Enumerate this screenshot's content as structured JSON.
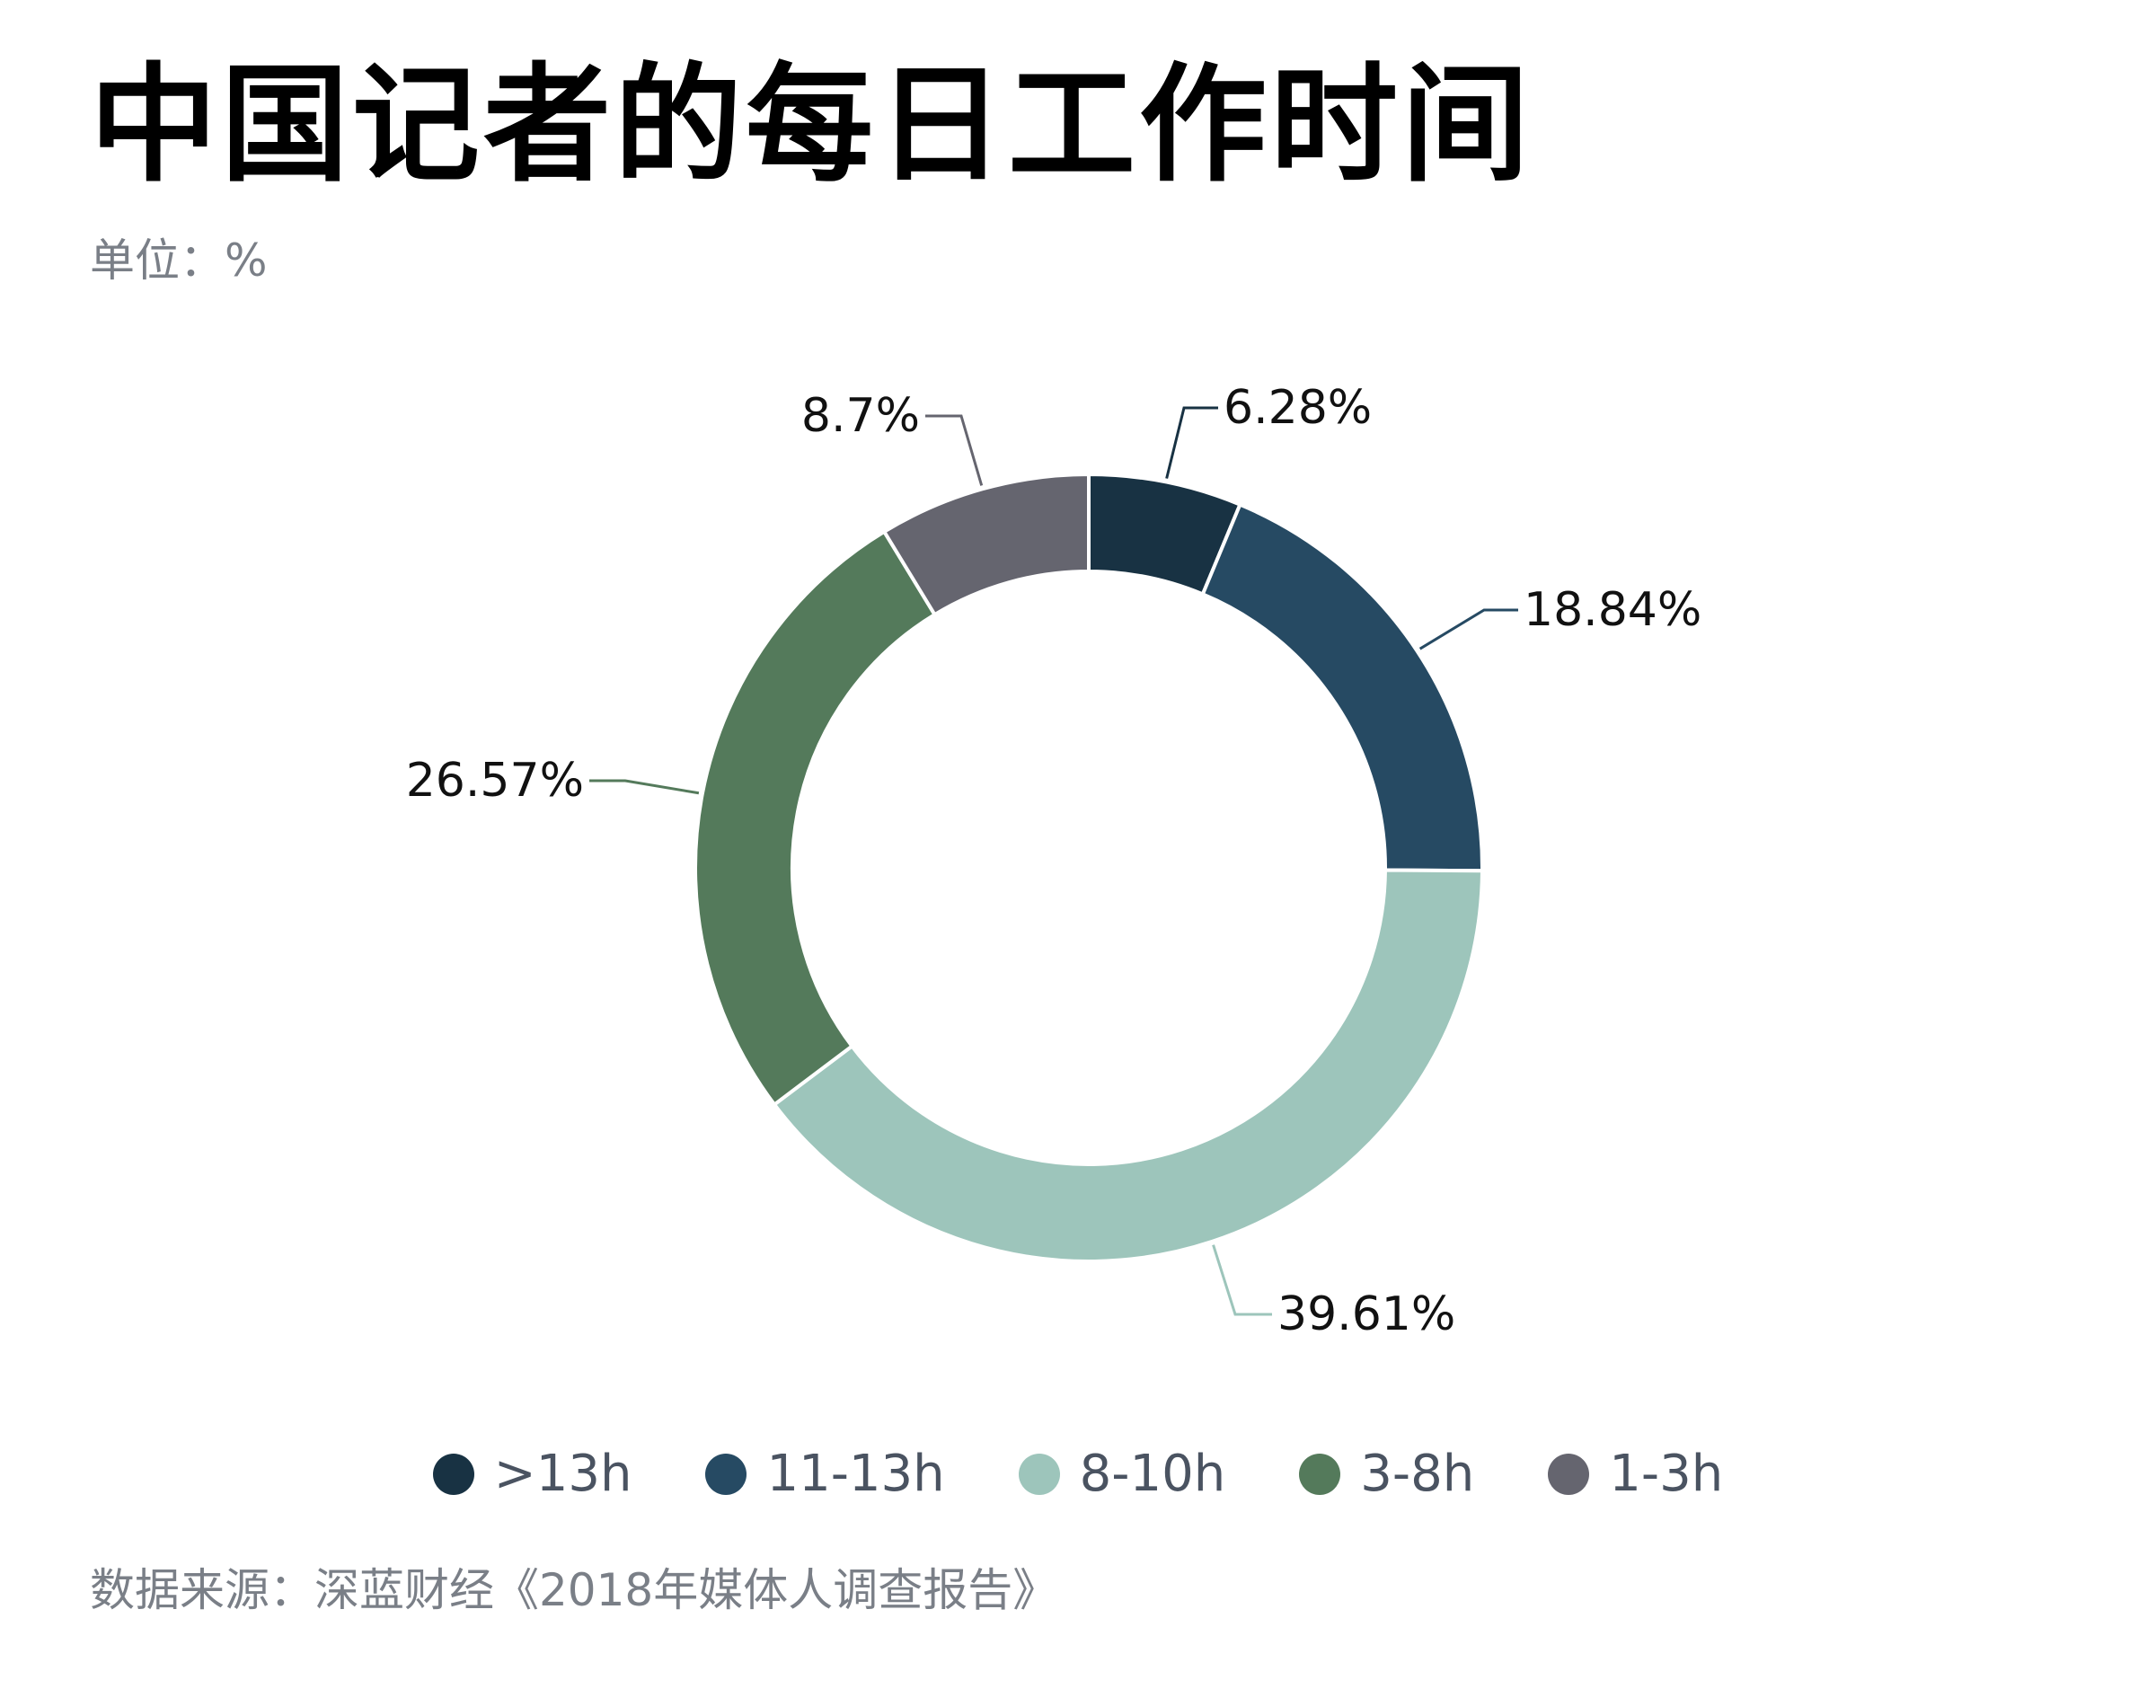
{
  "title": "中国记者的每日工作时间",
  "unit": "单位：%",
  "source": "数据来源：深蓝财经《2018年媒体人调查报告》",
  "chart_data": {
    "type": "pie",
    "donut": true,
    "start_angle_deg": 0,
    "direction": "clockwise",
    "series": [
      {
        "name": ">13h",
        "value": 6.28,
        "label": "6.28%",
        "color": "#183243"
      },
      {
        "name": "11-13h",
        "value": 18.84,
        "label": "18.84%",
        "color": "#264a63"
      },
      {
        "name": "8-10h",
        "value": 39.61,
        "label": "39.61%",
        "color": "#9dc5bb"
      },
      {
        "name": "3-8h",
        "value": 26.57,
        "label": "26.57%",
        "color": "#547a5b"
      },
      {
        "name": "1-3h",
        "value": 8.7,
        "label": "8.7%",
        "color": "#65656f"
      }
    ],
    "legend": "bottom"
  }
}
